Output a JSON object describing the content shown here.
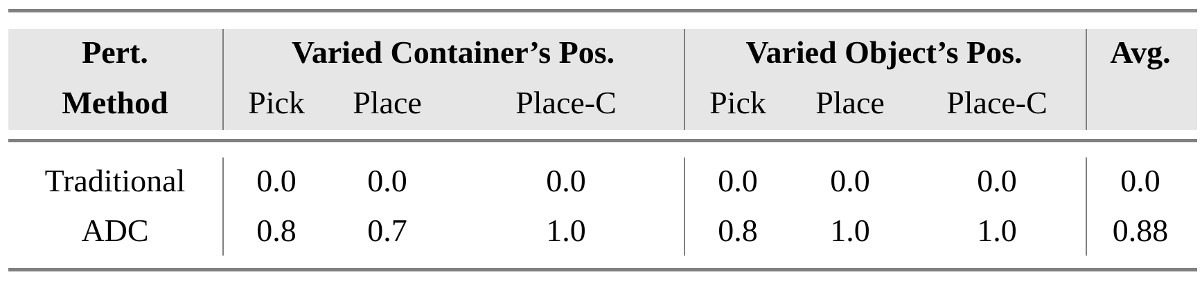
{
  "table": {
    "header_row1": {
      "method": "Pert.",
      "group1": "Varied Container’s Pos.",
      "group2": "Varied Object’s Pos.",
      "avg": "Avg."
    },
    "header_row2": {
      "method": "Method",
      "cols": [
        "Pick",
        "Place",
        "Place-C",
        "Pick",
        "Place",
        "Place-C"
      ]
    },
    "rows": [
      {
        "method": "Traditional",
        "values": [
          "0.0",
          "0.0",
          "0.0",
          "0.0",
          "0.0",
          "0.0",
          "0.0"
        ]
      },
      {
        "method": "ADC",
        "values": [
          "0.8",
          "0.7",
          "1.0",
          "0.8",
          "1.0",
          "1.0",
          "0.88"
        ]
      }
    ],
    "colors": {
      "header_shade": "#e6e6e6",
      "rule": "#808080"
    }
  }
}
